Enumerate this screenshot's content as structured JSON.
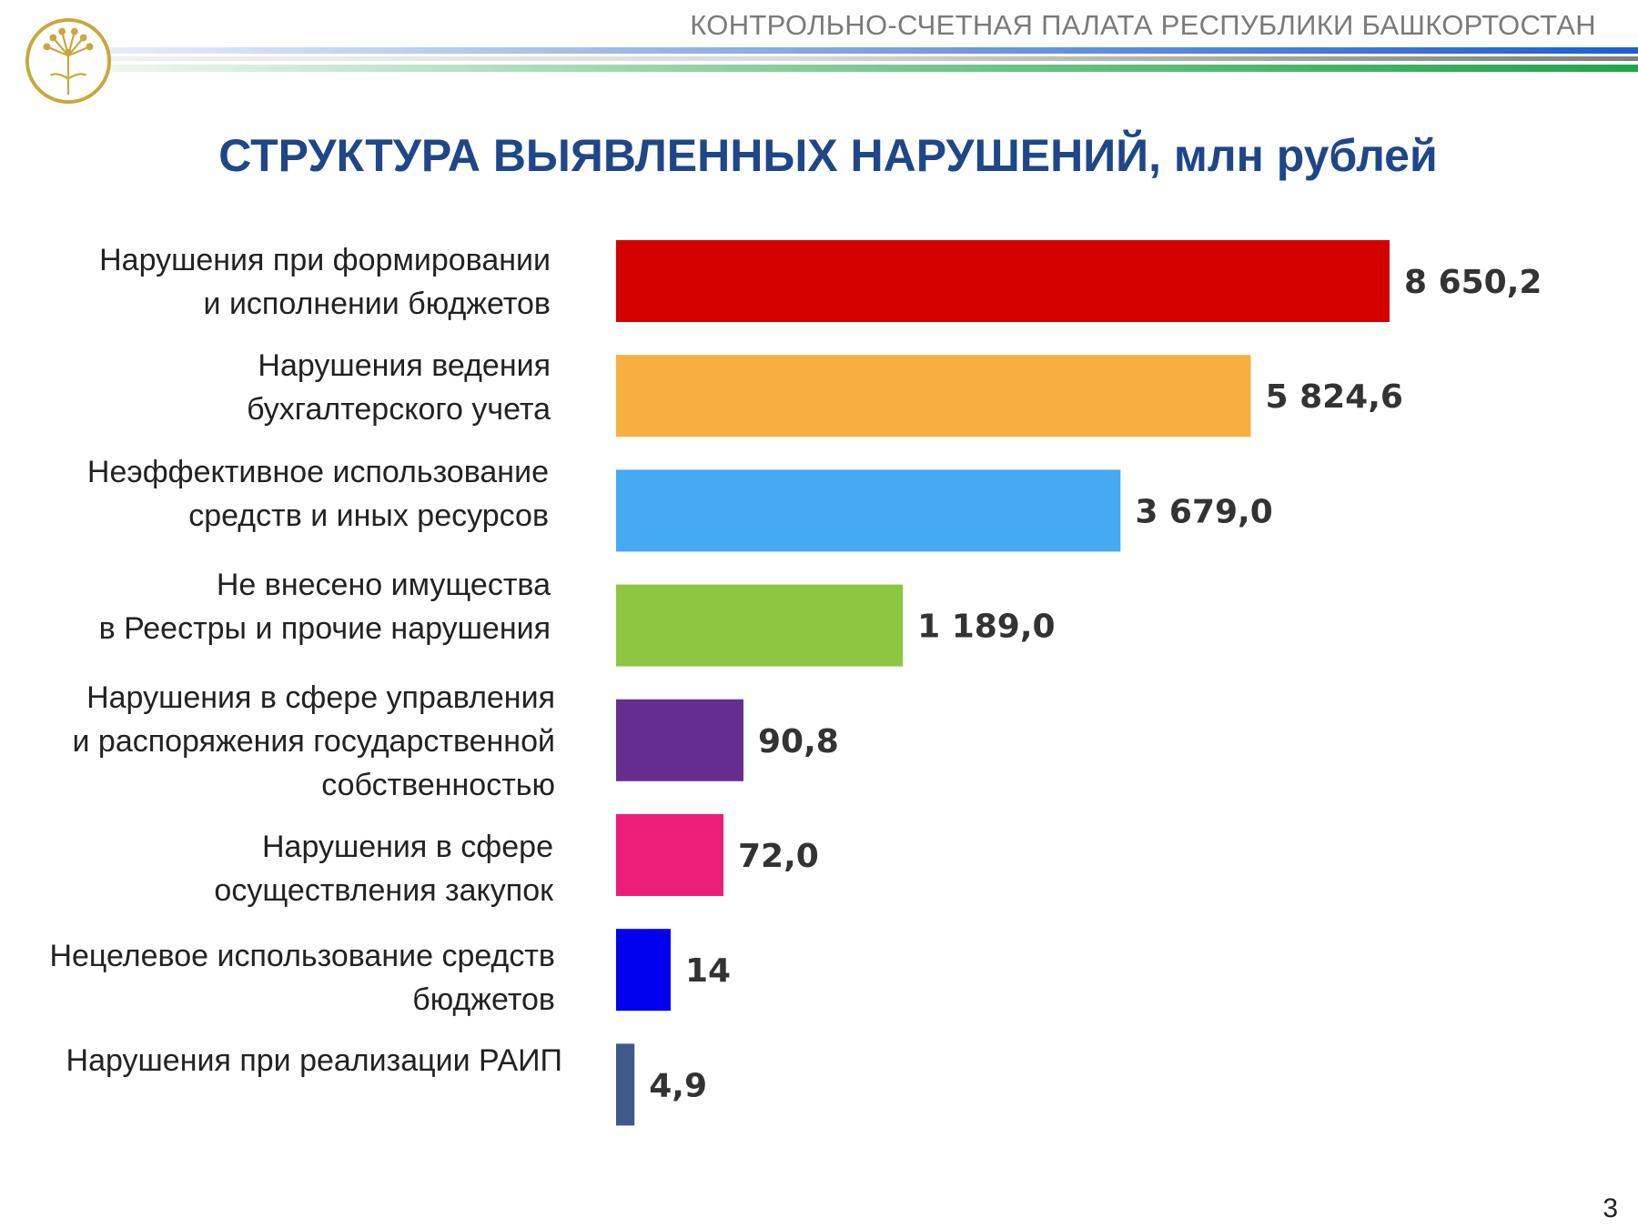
{
  "header": {
    "organization": "КОНТРОЛЬНО-СЧЕТНАЯ ПАЛАТА РЕСПУБЛИКИ БАШКОРТОСТАН",
    "logo_icon": "kurai-flower-emblem-icon",
    "logo_color": "#c8a83c"
  },
  "page_number": "3",
  "chart_data": {
    "type": "bar",
    "orientation": "horizontal",
    "title": "СТРУКТУРА ВЫЯВЛЕННЫХ НАРУШЕНИЙ, млн рублей",
    "categories": [
      "Нарушения при формировании\nи исполнении бюджетов",
      "Нарушения ведения\nбухгалтерского учета",
      "Неэффективное использование\nсредств  и иных ресурсов",
      "Не внесено имущества\nв Реестры и прочие нарушения",
      "Нарушения в сфере управления\nи распоряжения государственной\nсобственностью",
      "Нарушения в сфере\nосуществления закупок",
      "Нецелевое использование средств\nбюджетов",
      "Нарушения при реализации РАИП"
    ],
    "values": [
      8650.2,
      5824.6,
      3679.0,
      1189.0,
      90.8,
      72.0,
      14,
      4.9
    ],
    "value_labels": [
      "8 650,2",
      "5 824,6",
      "3 679,0",
      "1 189,0",
      "90,8",
      "72,0",
      "14",
      "4,9"
    ],
    "colors": [
      "#d40000",
      "#f7b040",
      "#45aaf2",
      "#8dc63f",
      "#662d91",
      "#ec1e79",
      "#0000ee",
      "#3d5a8a"
    ],
    "scale": "non-linear (bar lengths not proportional to values)",
    "grid": false,
    "legend": "none",
    "xlabel": "",
    "ylabel": ""
  }
}
